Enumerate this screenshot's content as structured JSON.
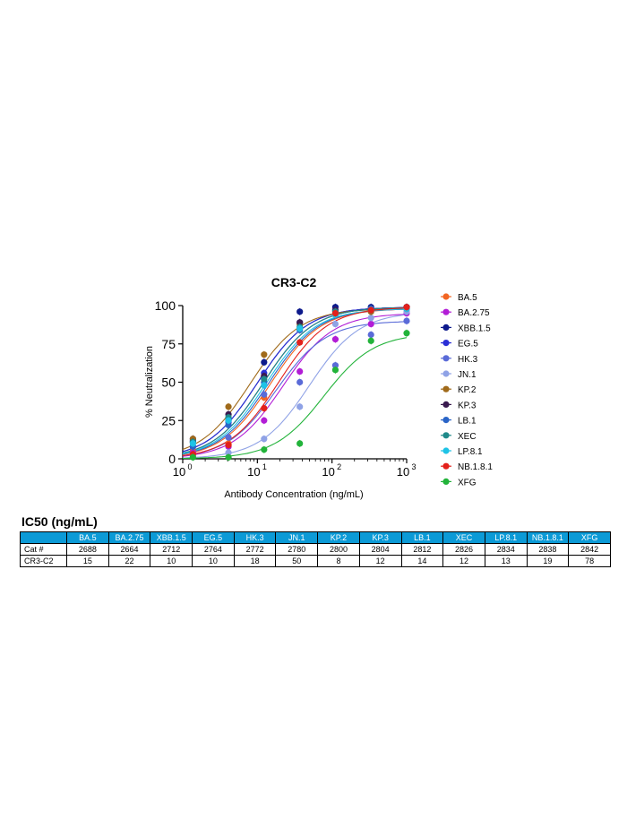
{
  "chart_data": {
    "type": "line",
    "title": "CR3-C2",
    "xlabel": "Antibody Concentration (ng/mL)",
    "ylabel": "% Neutralization",
    "xscale": "log",
    "xlim": [
      1,
      1000
    ],
    "ylim": [
      0,
      100
    ],
    "x_ticks": [
      {
        "value": 1,
        "base": "10",
        "exp": "0"
      },
      {
        "value": 10,
        "base": "10",
        "exp": "1"
      },
      {
        "value": 100,
        "base": "10",
        "exp": "2"
      },
      {
        "value": 1000,
        "base": "10",
        "exp": "3"
      }
    ],
    "y_ticks": [
      "0",
      "25",
      "50",
      "75",
      "100"
    ],
    "legend_position": "right",
    "x": [
      1.37,
      4.1,
      12.3,
      37,
      111,
      333,
      1000
    ],
    "series": [
      {
        "name": "BA.5",
        "color": "#f26522",
        "ic50": 15,
        "y": [
          5,
          10,
          40,
          85,
          96,
          97,
          98
        ]
      },
      {
        "name": "BA.2.75",
        "color": "#b21dd6",
        "ic50": 22,
        "y": [
          4,
          8,
          25,
          57,
          78,
          88,
          95
        ]
      },
      {
        "name": "XBB.1.5",
        "color": "#0d1a8c",
        "ic50": 10,
        "y": [
          13,
          25,
          63,
          96,
          99,
          99,
          99
        ]
      },
      {
        "name": "EG.5",
        "color": "#2a2fd6",
        "ic50": 10,
        "y": [
          12,
          24,
          56,
          89,
          97,
          98,
          99
        ]
      },
      {
        "name": "HK.3",
        "color": "#5a6bd8",
        "ic50": 18,
        "y": [
          8,
          14,
          42,
          50,
          61,
          81,
          90
        ]
      },
      {
        "name": "JN.1",
        "color": "#8fa2e6",
        "ic50": 50,
        "y": [
          2,
          4,
          13,
          34,
          88,
          92,
          96
        ]
      },
      {
        "name": "KP.2",
        "color": "#a06a1a",
        "ic50": 8,
        "y": [
          13,
          34,
          68,
          88,
          94,
          96,
          98
        ]
      },
      {
        "name": "KP.3",
        "color": "#3a1a4f",
        "ic50": 12,
        "y": [
          11,
          29,
          54,
          89,
          97,
          98,
          99
        ]
      },
      {
        "name": "LB.1",
        "color": "#2a64c7",
        "ic50": 14,
        "y": [
          8,
          22,
          50,
          84,
          96,
          98,
          98
        ]
      },
      {
        "name": "XEC",
        "color": "#1f8a8a",
        "ic50": 12,
        "y": [
          11,
          27,
          52,
          86,
          96,
          97,
          99
        ]
      },
      {
        "name": "LP.8.1",
        "color": "#1ec3e6",
        "ic50": 13,
        "y": [
          10,
          25,
          48,
          85,
          94,
          97,
          98
        ]
      },
      {
        "name": "NB.1.8.1",
        "color": "#e3201b",
        "ic50": 19,
        "y": [
          3,
          9,
          33,
          76,
          95,
          97,
          99
        ]
      },
      {
        "name": "XFG",
        "color": "#22b33a",
        "ic50": 78,
        "y": [
          1,
          1,
          6,
          10,
          58,
          77,
          82
        ]
      }
    ]
  },
  "ic50_table": {
    "title": "IC50 (ng/mL)",
    "corner": "",
    "columns": [
      "BA.5",
      "BA.2.75",
      "XBB.1.5",
      "EG.5",
      "HK.3",
      "JN.1",
      "KP.2",
      "KP.3",
      "LB.1",
      "XEC",
      "LP.8.1",
      "NB.1.8.1",
      "XFG"
    ],
    "rows": [
      {
        "label": "Cat #",
        "values": [
          "2688",
          "2664",
          "2712",
          "2764",
          "2772",
          "2780",
          "2800",
          "2804",
          "2812",
          "2826",
          "2834",
          "2838",
          "2842"
        ]
      },
      {
        "label": "CR3-C2",
        "values": [
          "15",
          "22",
          "10",
          "10",
          "18",
          "50",
          "8",
          "12",
          "14",
          "12",
          "13",
          "19",
          "78"
        ]
      }
    ]
  }
}
